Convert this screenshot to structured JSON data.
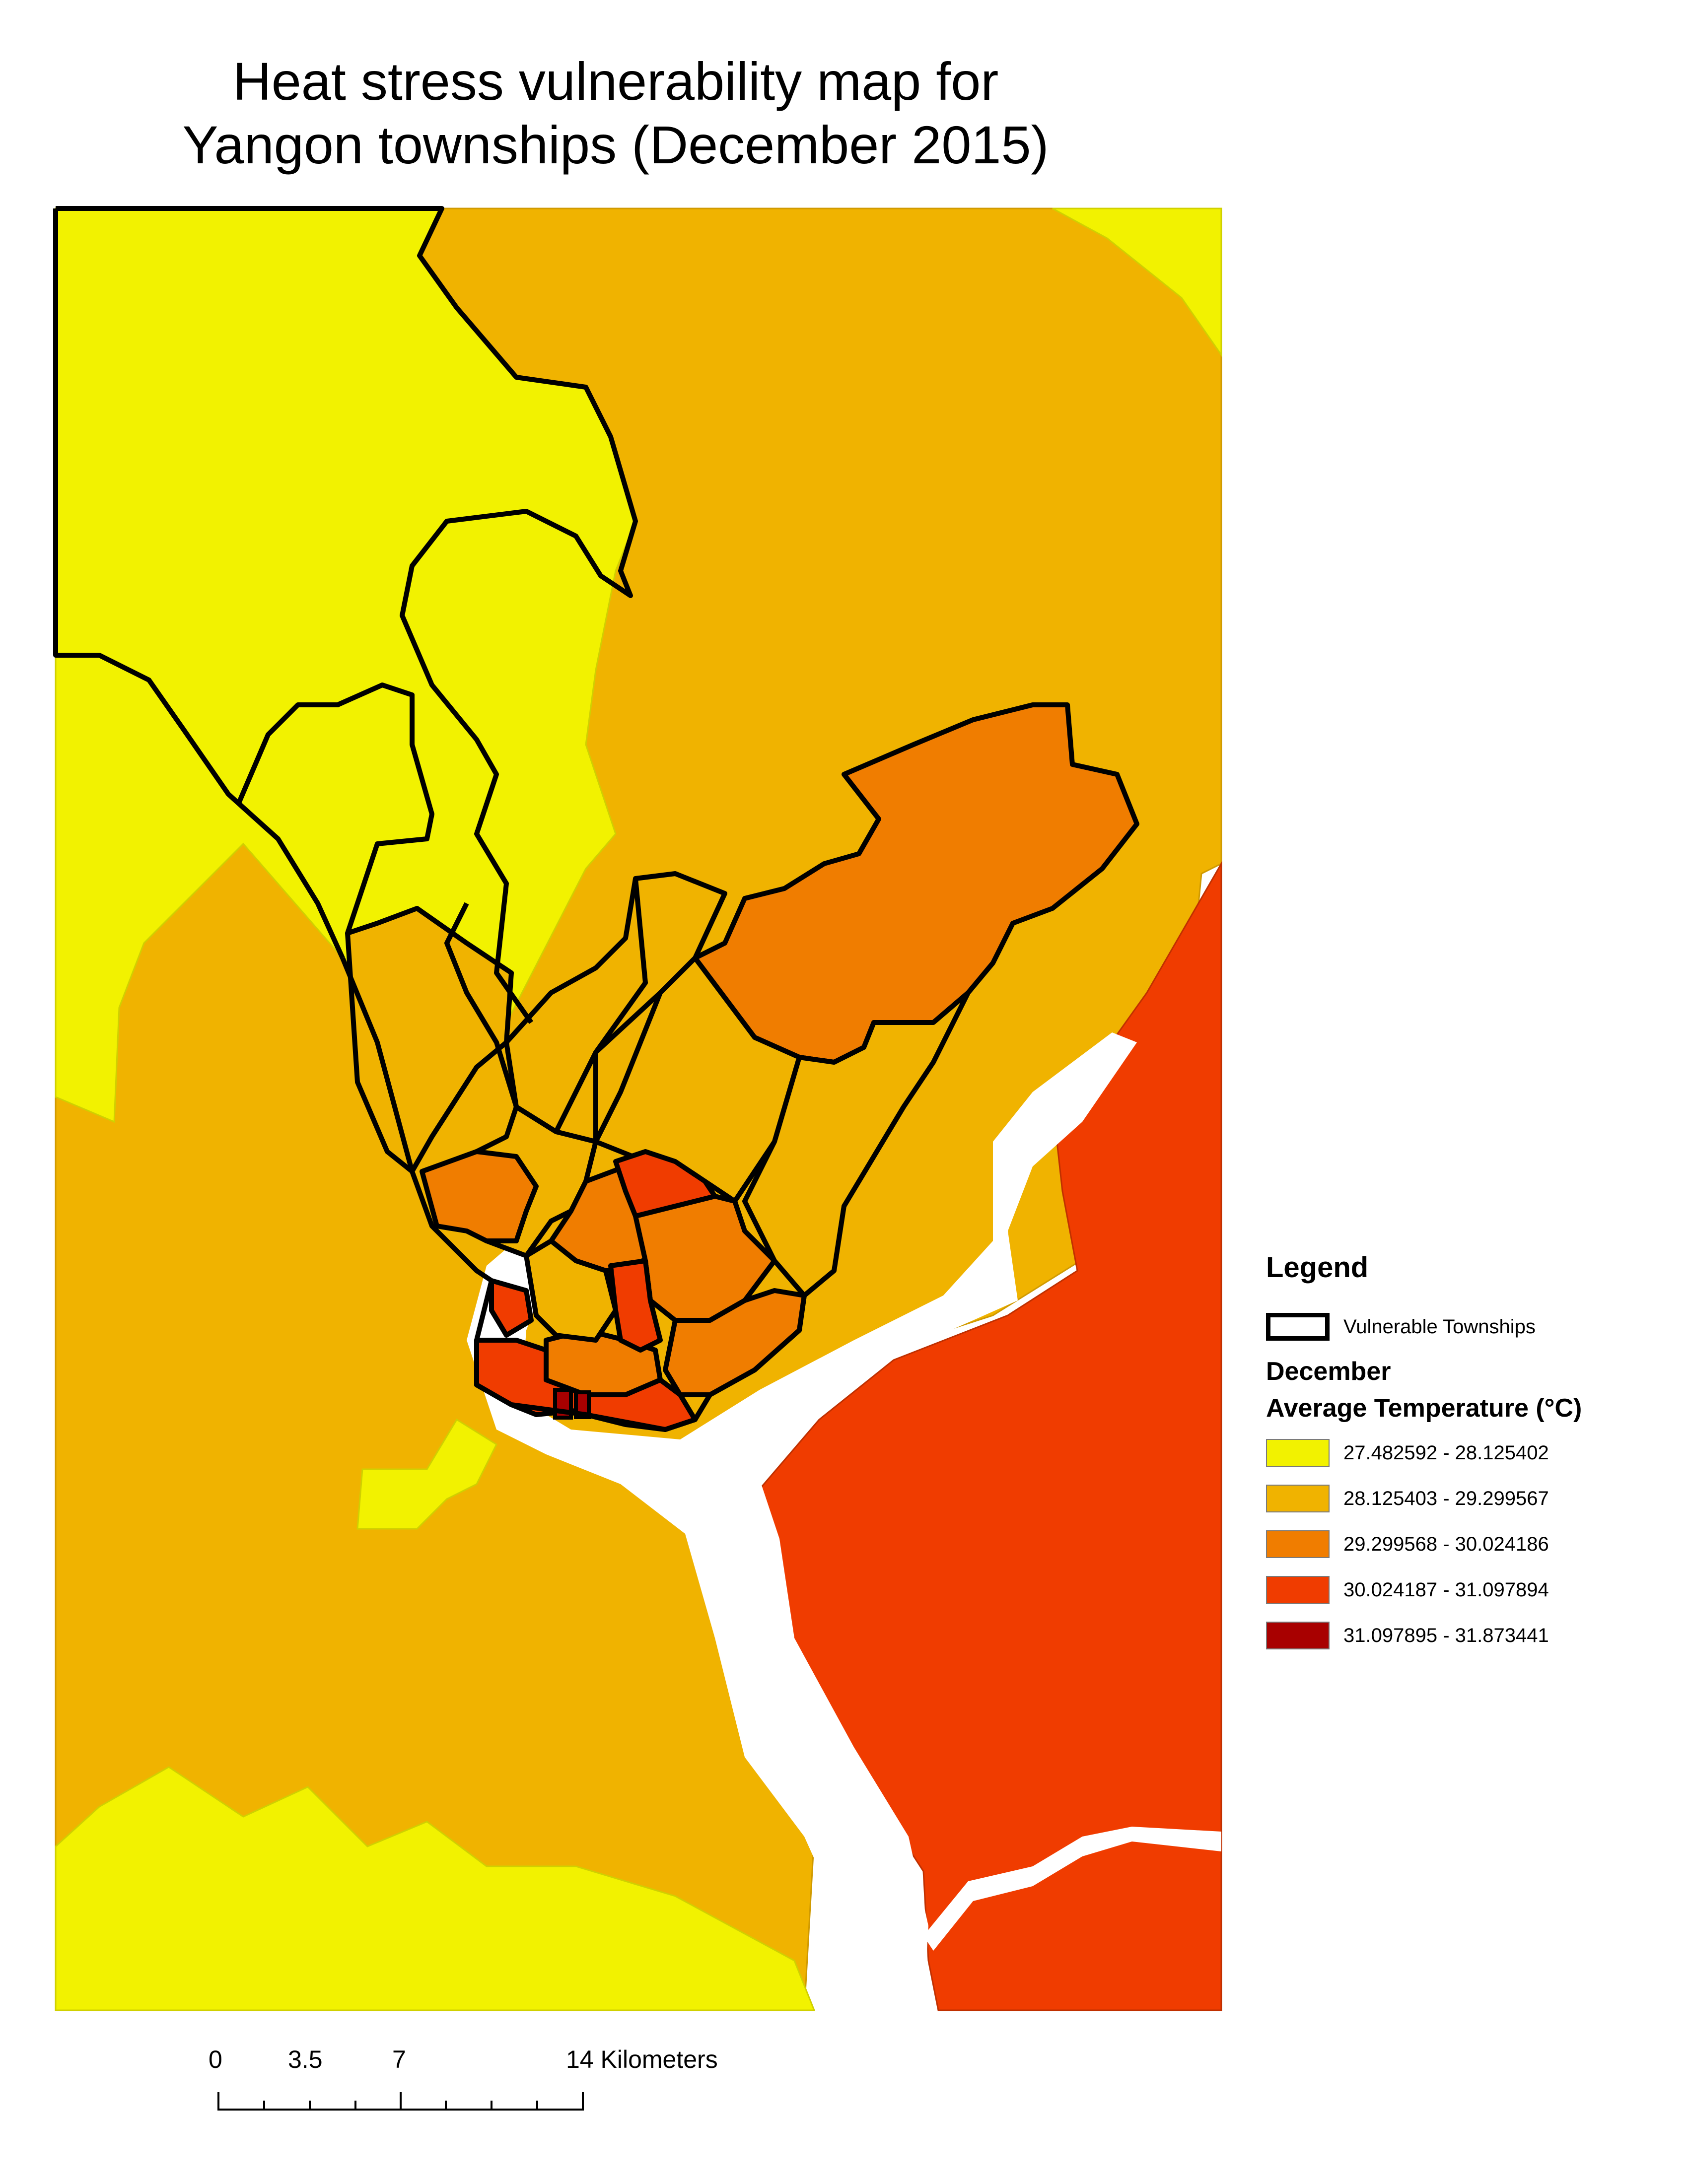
{
  "title": {
    "line1": "Heat stress vulnerability map for",
    "line2": "Yangon townships (December 2015)"
  },
  "legend": {
    "heading": "Legend",
    "vulnerable_label": "Vulnerable Townships",
    "month": "December",
    "variable": "Average Temperature (°C)",
    "classes": [
      {
        "range": "27.482592 - 28.125402",
        "color": "#f2f200"
      },
      {
        "range": "28.125403 - 29.299567",
        "color": "#f0b300"
      },
      {
        "range": "29.299568 - 30.024186",
        "color": "#f07d00"
      },
      {
        "range": "30.024187 - 31.097894",
        "color": "#f03c00"
      },
      {
        "range": "31.097895 - 31.873441",
        "color": "#a80000"
      }
    ]
  },
  "scale_bar": {
    "labels": [
      "0",
      "3.5",
      "7",
      "14 Kilometers"
    ]
  },
  "colors": {
    "class1": "#f2f200",
    "class2": "#f0b300",
    "class3": "#f07d00",
    "class4": "#f03c00",
    "class5": "#a80000",
    "river": "#ffffff",
    "outline": "#000000"
  }
}
